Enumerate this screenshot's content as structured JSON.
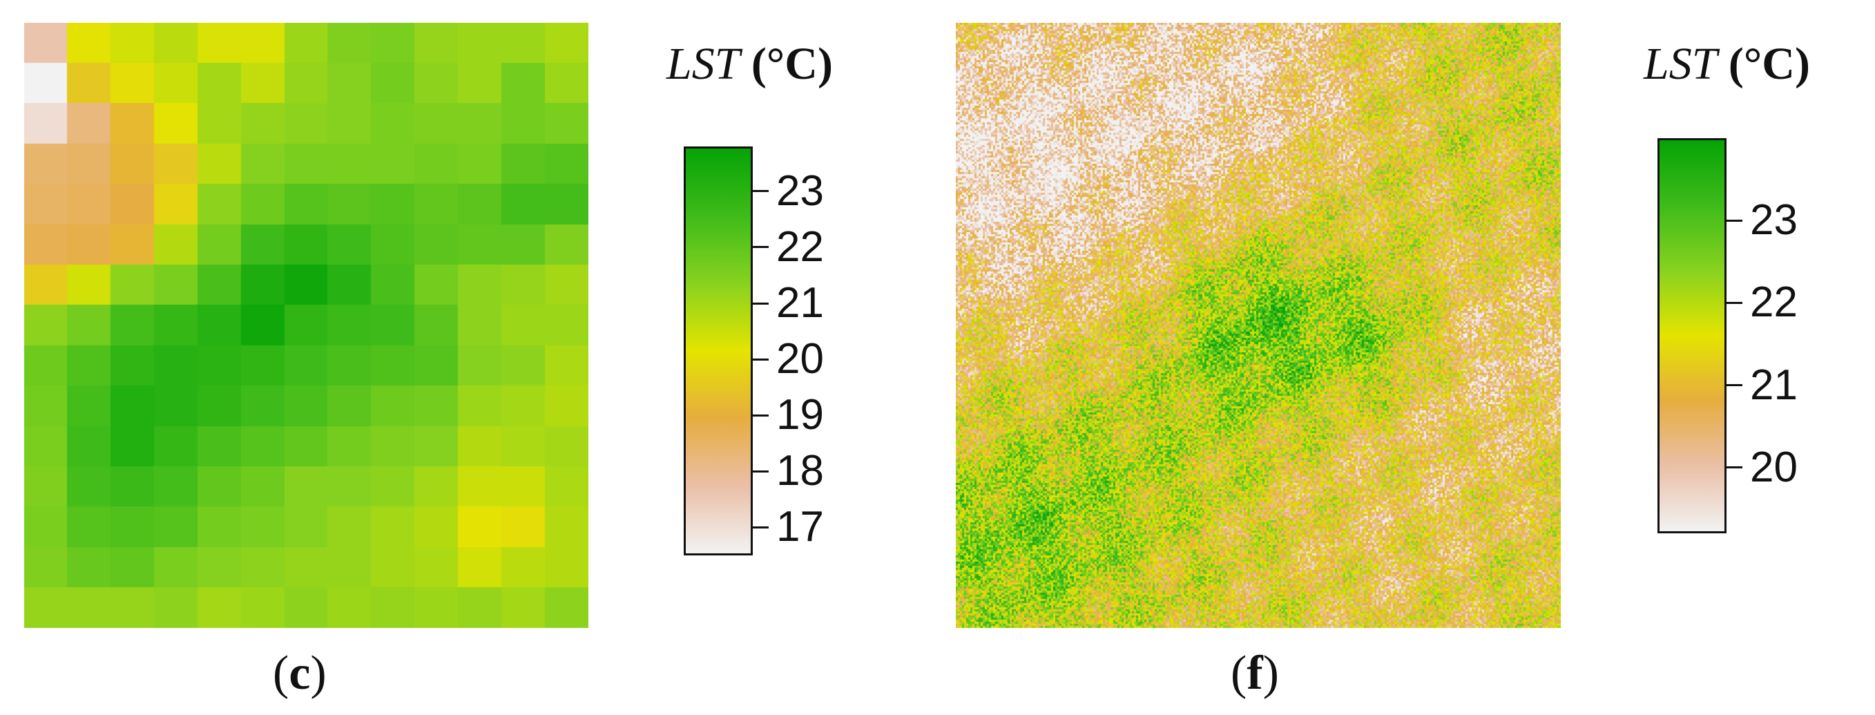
{
  "chart_data": [
    {
      "type": "heatmap",
      "panel_label": "c",
      "legend_title_var": "LST",
      "legend_title_unit": "(°C)",
      "colorbar": {
        "range": [
          16.5,
          23.8
        ],
        "ticks": [
          17,
          18,
          19,
          20,
          21,
          22,
          23
        ],
        "colors": [
          "#f2f2f2",
          "#eabfa6",
          "#e6ad3f",
          "#e4e400",
          "#88d21f",
          "#3fbb1a",
          "#06a306"
        ]
      },
      "grid_values": [
        [
          17.6,
          20.1,
          20.4,
          20.7,
          20.3,
          20.3,
          21.1,
          21.5,
          21.6,
          21.2,
          21.1,
          21.1,
          20.9
        ],
        [
          16.5,
          19.5,
          20.0,
          20.5,
          21.0,
          20.6,
          21.2,
          21.4,
          21.7,
          21.3,
          21.1,
          21.7,
          21.1
        ],
        [
          17.0,
          18.2,
          19.2,
          20.1,
          21.0,
          21.2,
          21.3,
          21.4,
          21.6,
          21.5,
          21.5,
          21.7,
          21.6
        ],
        [
          18.4,
          18.5,
          19.1,
          19.5,
          20.7,
          21.4,
          21.6,
          21.6,
          21.6,
          21.7,
          21.6,
          22.1,
          22.2
        ],
        [
          18.5,
          18.6,
          18.9,
          19.8,
          21.3,
          21.8,
          22.2,
          22.1,
          22.2,
          22.0,
          22.1,
          22.5,
          22.5
        ],
        [
          18.7,
          18.8,
          19.1,
          20.8,
          21.7,
          22.6,
          22.9,
          22.6,
          22.3,
          22.1,
          22.0,
          22.0,
          21.5
        ],
        [
          19.6,
          20.4,
          21.3,
          21.6,
          22.4,
          23.3,
          23.6,
          23.1,
          22.4,
          21.7,
          21.3,
          21.2,
          21.0
        ],
        [
          21.3,
          21.7,
          22.5,
          22.8,
          23.1,
          23.6,
          22.9,
          22.7,
          22.6,
          22.1,
          21.3,
          21.1,
          21.1
        ],
        [
          21.8,
          22.3,
          22.9,
          23.1,
          23.0,
          22.9,
          22.6,
          22.4,
          22.3,
          22.2,
          21.4,
          21.3,
          20.9
        ],
        [
          21.7,
          22.5,
          23.2,
          23.1,
          22.9,
          22.6,
          22.4,
          22.1,
          21.8,
          21.7,
          21.1,
          21.0,
          20.8
        ],
        [
          21.6,
          22.6,
          23.2,
          22.8,
          22.4,
          22.2,
          22.0,
          21.7,
          21.5,
          21.4,
          20.8,
          20.9,
          21.0
        ],
        [
          21.5,
          22.5,
          22.7,
          22.5,
          22.0,
          21.8,
          21.4,
          21.4,
          21.3,
          21.0,
          20.5,
          20.5,
          20.9
        ],
        [
          21.6,
          22.2,
          22.3,
          22.2,
          21.7,
          21.6,
          21.4,
          21.2,
          21.0,
          20.8,
          20.1,
          20.0,
          20.8
        ],
        [
          21.5,
          21.9,
          22.0,
          21.6,
          21.4,
          21.3,
          21.2,
          21.2,
          21.0,
          20.9,
          20.4,
          20.7,
          20.8
        ],
        [
          21.2,
          21.2,
          21.2,
          21.3,
          21.0,
          21.1,
          21.3,
          21.1,
          21.2,
          21.1,
          21.2,
          21.0,
          21.3
        ]
      ]
    },
    {
      "type": "heatmap",
      "panel_label": "f",
      "legend_title_var": "LST",
      "legend_title_unit": "(°C)",
      "colorbar": {
        "range": [
          19.2,
          24.0
        ],
        "ticks": [
          20,
          21,
          22,
          23
        ],
        "colors": [
          "#f2f2f2",
          "#eabfa6",
          "#e6ad3f",
          "#e4e400",
          "#88d21f",
          "#3fbb1a",
          "#06a306"
        ]
      }
    }
  ]
}
